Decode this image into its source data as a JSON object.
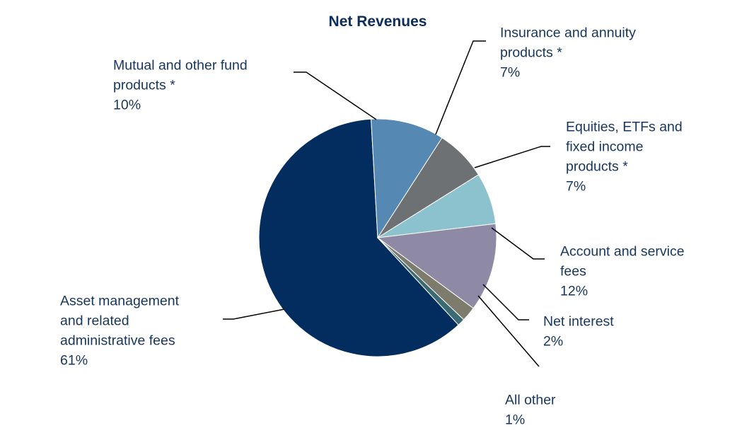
{
  "chart_data": {
    "type": "pie",
    "title": "Net Revenues",
    "slices": [
      {
        "label": "Asset management and related administrative fees",
        "lines": [
          "Asset management",
          "and related",
          "administrative fees"
        ],
        "value": 61,
        "pct_label": "61%",
        "color": "#032d5e"
      },
      {
        "label": "Mutual and other fund products *",
        "lines": [
          "Mutual and other fund",
          "products *"
        ],
        "value": 10,
        "pct_label": "10%",
        "color": "#5589b3"
      },
      {
        "label": "Insurance and annuity products *",
        "lines": [
          "Insurance and annuity",
          "products *"
        ],
        "value": 7,
        "pct_label": "7%",
        "color": "#6e7174"
      },
      {
        "label": "Equities, ETFs and fixed income products *",
        "lines": [
          "Equities, ETFs and",
          "fixed income",
          "products *"
        ],
        "value": 7,
        "pct_label": "7%",
        "color": "#8cc2ce"
      },
      {
        "label": "Account and service fees",
        "lines": [
          "Account and service",
          "fees"
        ],
        "value": 12,
        "pct_label": "12%",
        "color": "#8e8aa6"
      },
      {
        "label": "Net interest",
        "lines": [
          "Net interest"
        ],
        "value": 2,
        "pct_label": "2%",
        "color": "#7d7b6c"
      },
      {
        "label": "All other",
        "lines": [
          "All other"
        ],
        "value": 1,
        "pct_label": "1%",
        "color": "#3c6a73"
      }
    ]
  }
}
